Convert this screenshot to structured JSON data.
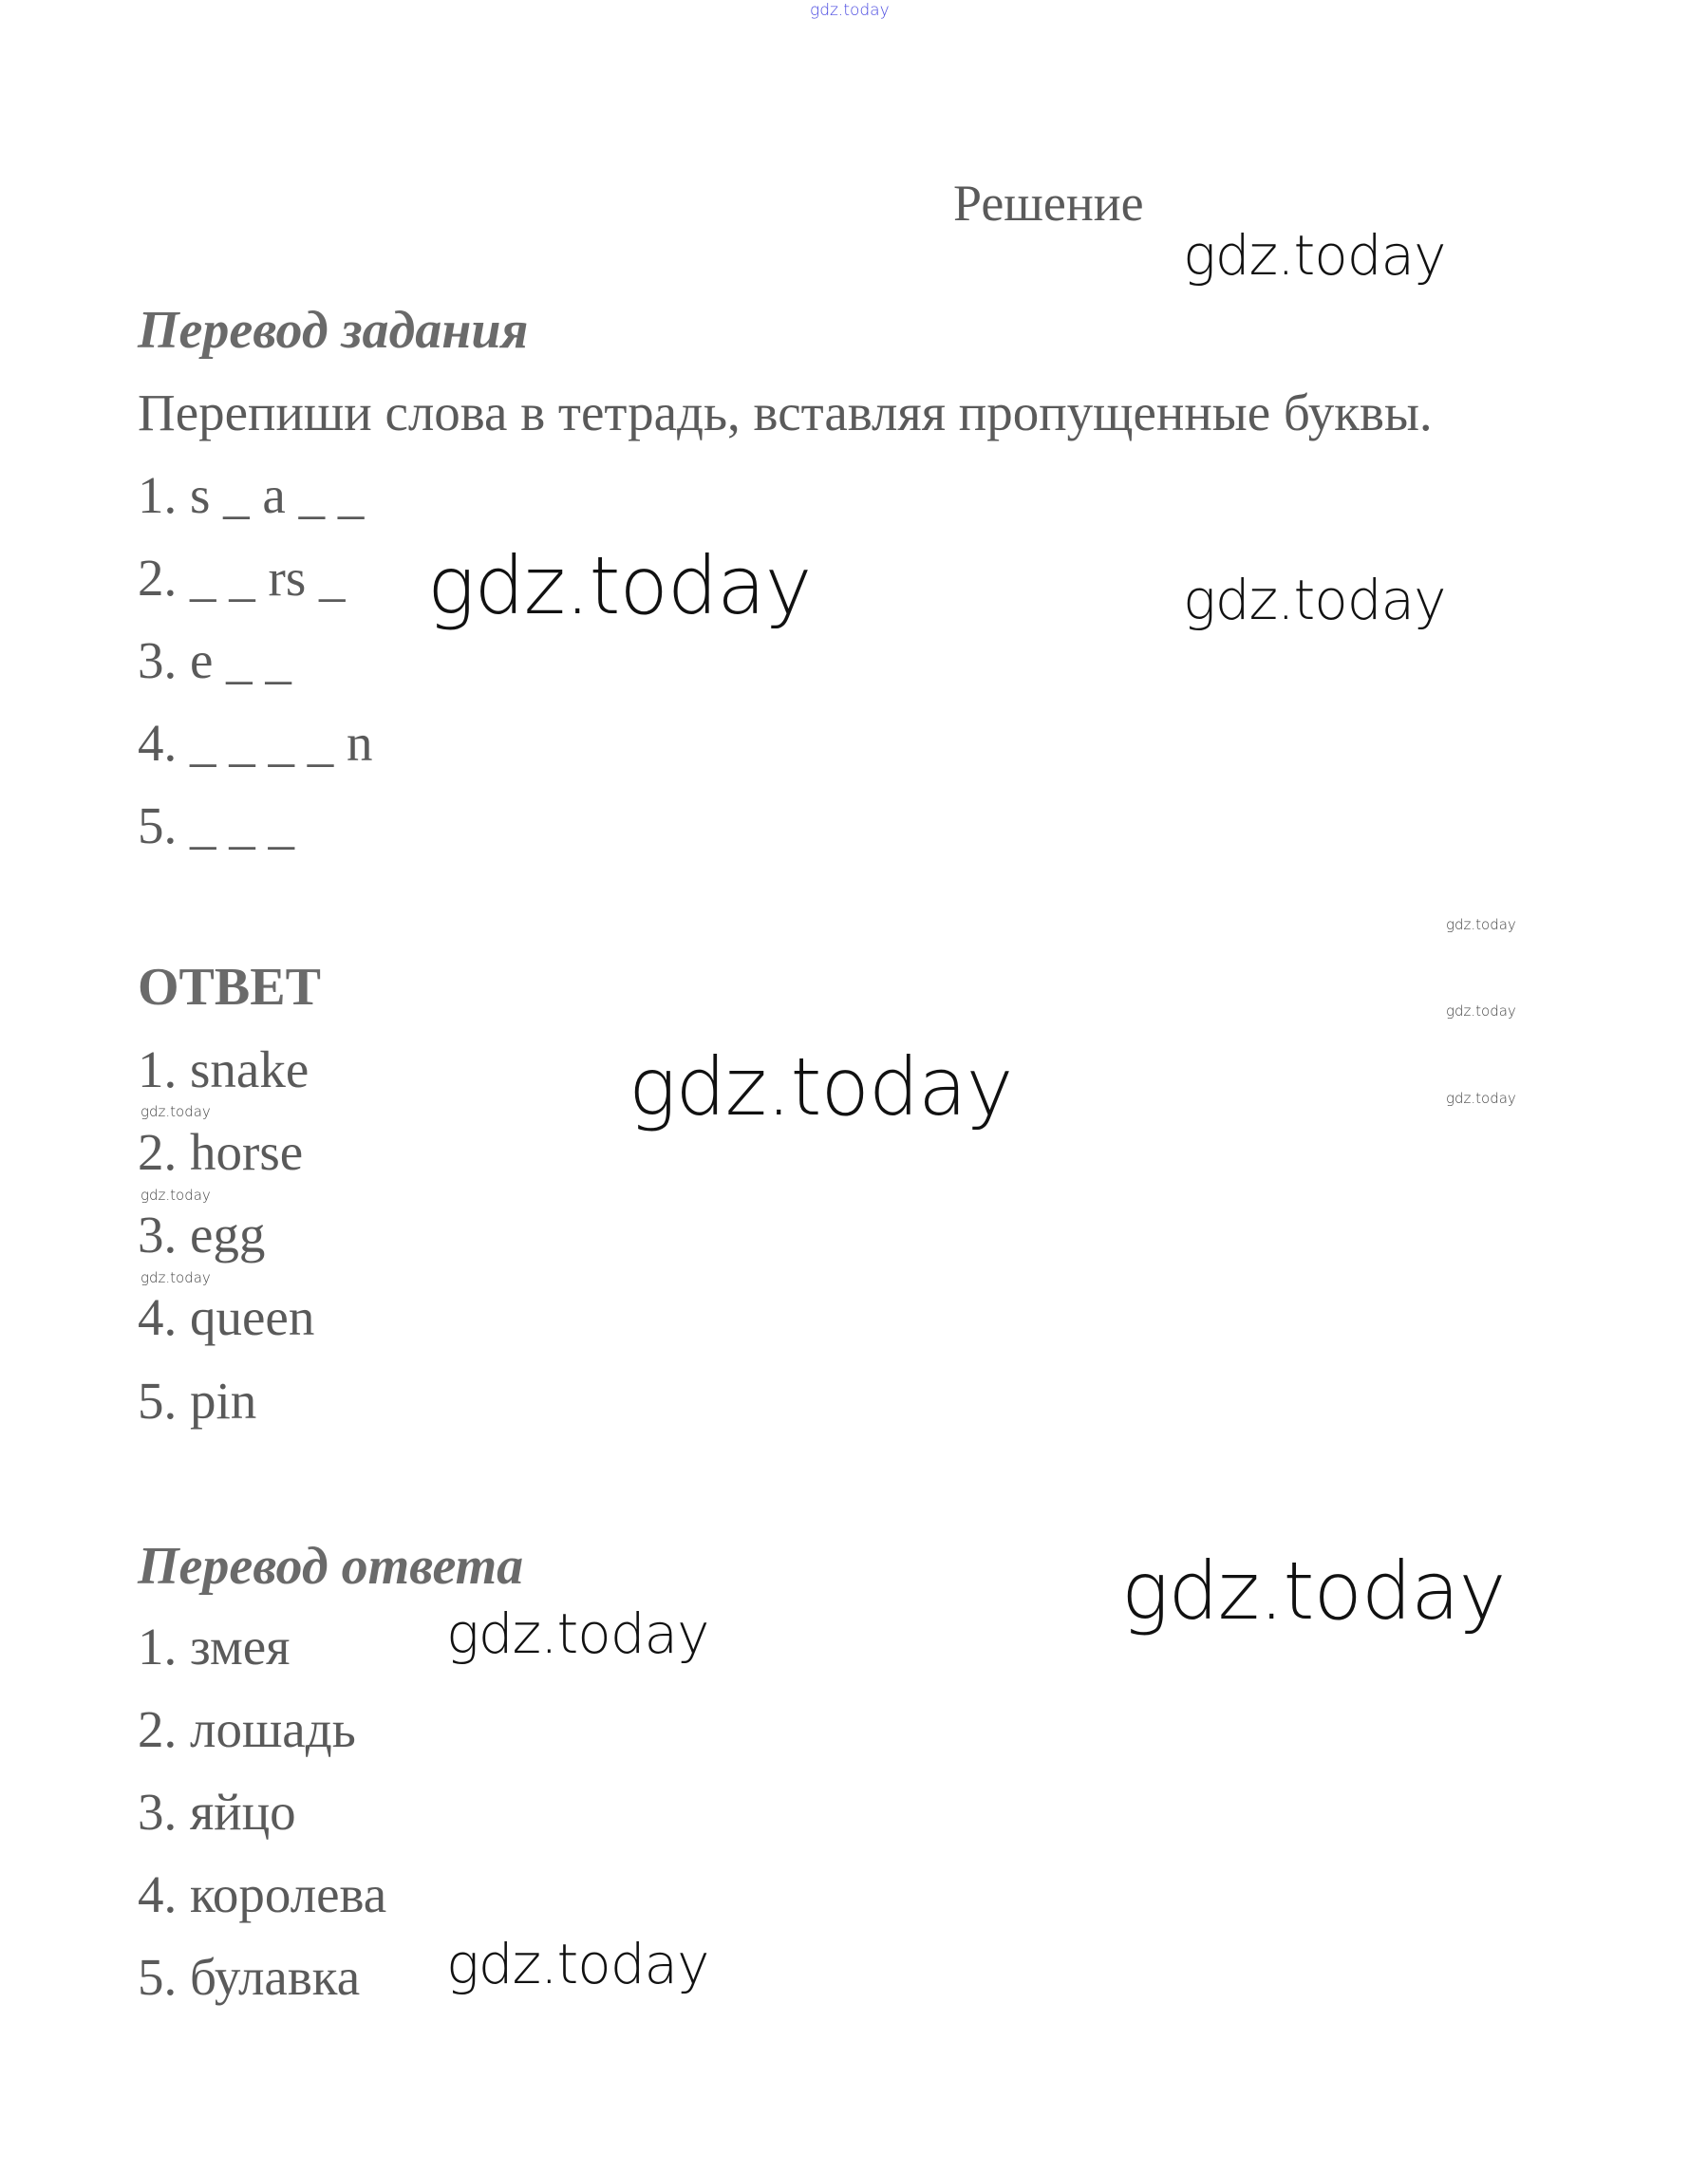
{
  "watermark": "gdz.today",
  "title": "Решение",
  "task": {
    "heading": "Перевод задания",
    "instruction": "Перепиши слова в тетрадь, вставляя пропущенные буквы.",
    "items": [
      "1. s _ a _ _",
      "2. _ _ rs _",
      "3. e _ _",
      "4. _ _ _ _ n",
      "5. _ _ _"
    ]
  },
  "answer": {
    "heading": "ОТВЕТ",
    "items": [
      "1. snake",
      "2. horse",
      "3. egg",
      "4. queen",
      "5. pin"
    ]
  },
  "translation": {
    "heading": "Перевод ответа",
    "items": [
      "1. змея",
      "2. лошадь",
      "3. яйцо",
      "4. королева",
      "5. булавка"
    ]
  },
  "colors": {
    "text": "#5a5a5a",
    "watermark": "#111111",
    "top_watermark": "#4a4ae0"
  }
}
